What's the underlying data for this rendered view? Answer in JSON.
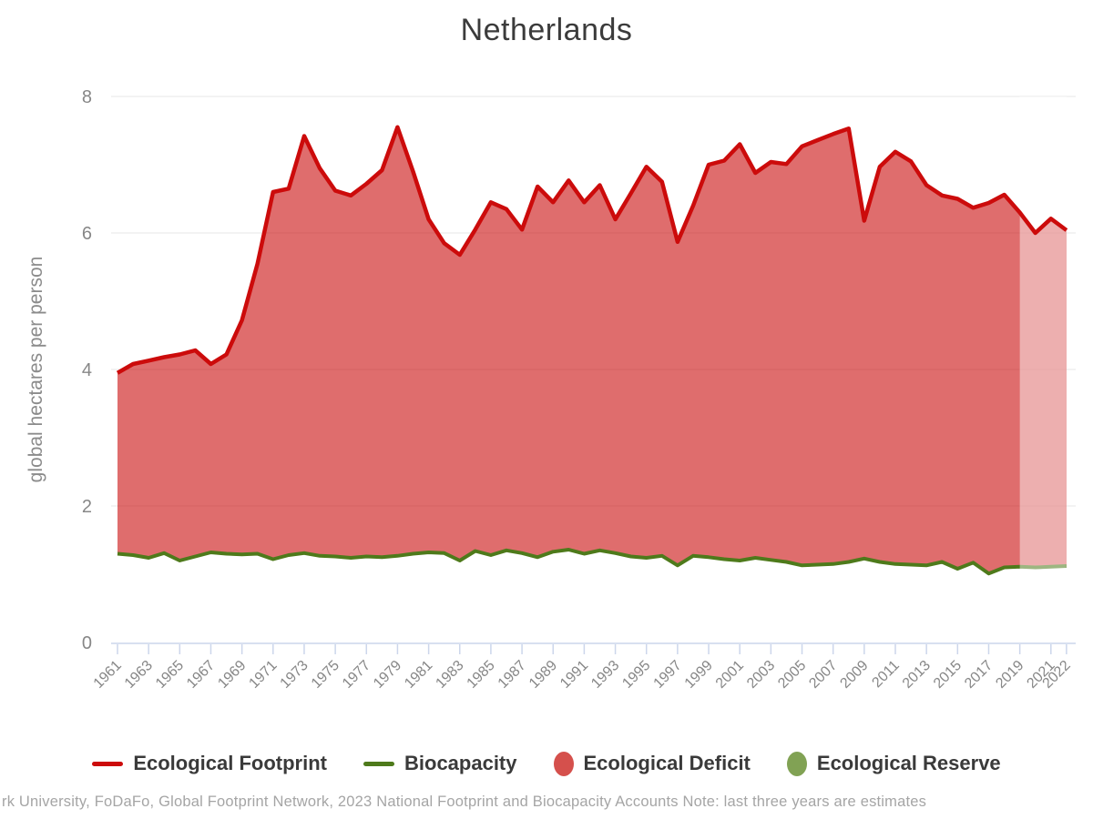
{
  "title": "Netherlands",
  "y_axis": {
    "title": "global hectares per person",
    "ticks": [
      0,
      2,
      4,
      6,
      8
    ],
    "max": 8
  },
  "x_axis": {
    "tick_years": [
      1961,
      1963,
      1965,
      1967,
      1969,
      1971,
      1973,
      1975,
      1977,
      1979,
      1981,
      1983,
      1985,
      1987,
      1989,
      1991,
      1993,
      1995,
      1997,
      1999,
      2001,
      2003,
      2005,
      2007,
      2009,
      2011,
      2013,
      2015,
      2017,
      2019,
      2021,
      2022
    ]
  },
  "legend": [
    {
      "label": "Ecological Footprint",
      "marker": "dash",
      "color": "#cc0b0b"
    },
    {
      "label": "Biocapacity",
      "marker": "dash",
      "color": "#4e7a1b"
    },
    {
      "label": "Ecological Deficit",
      "marker": "ellipse",
      "color": "#d5504c"
    },
    {
      "label": "Ecological Reserve",
      "marker": "ellipse",
      "color": "#81a254"
    }
  ],
  "footer": "rk University, FoDaFo, Global Footprint Network, 2023 National Footprint and Biocapacity Accounts Note: last three years are estimates",
  "colors": {
    "footprint_line": "#cc0b0b",
    "biocapacity_line": "#4e7a1b",
    "deficit_fill": "#cc1414",
    "grid": "#e7e7e7",
    "axis": "#ccd6eb",
    "axis_label": "#878787",
    "estimate_overlay": "#ffffff"
  },
  "chart_data": {
    "type": "area",
    "title": "Netherlands",
    "xlabel": "",
    "ylabel": "global hectares per person",
    "ylim": [
      0,
      8
    ],
    "grid": "horizontal",
    "legend_position": "bottom",
    "x": [
      1961,
      1962,
      1963,
      1964,
      1965,
      1966,
      1967,
      1968,
      1969,
      1970,
      1971,
      1972,
      1973,
      1974,
      1975,
      1976,
      1977,
      1978,
      1979,
      1980,
      1981,
      1982,
      1983,
      1984,
      1985,
      1986,
      1987,
      1988,
      1989,
      1990,
      1991,
      1992,
      1993,
      1994,
      1995,
      1996,
      1997,
      1998,
      1999,
      2000,
      2001,
      2002,
      2003,
      2004,
      2005,
      2006,
      2007,
      2008,
      2009,
      2010,
      2011,
      2012,
      2013,
      2014,
      2015,
      2016,
      2017,
      2018,
      2019,
      2020,
      2021,
      2022
    ],
    "series": [
      {
        "name": "Ecological Footprint",
        "color": "#cc0b0b",
        "values": [
          3.95,
          4.08,
          4.13,
          4.18,
          4.22,
          4.28,
          4.08,
          4.22,
          4.72,
          5.55,
          6.6,
          6.65,
          7.42,
          6.95,
          6.62,
          6.55,
          6.72,
          6.92,
          7.55,
          6.9,
          6.2,
          5.85,
          5.68,
          6.05,
          6.45,
          6.35,
          6.05,
          6.68,
          6.45,
          6.77,
          6.45,
          6.7,
          6.2,
          6.58,
          6.97,
          6.75,
          5.87,
          6.4,
          7.0,
          7.06,
          7.3,
          6.88,
          7.04,
          7.01,
          7.27,
          7.36,
          7.45,
          7.53,
          6.18,
          6.97,
          7.19,
          7.05,
          6.7,
          6.55,
          6.5,
          6.37,
          6.44,
          6.56,
          6.3,
          6.0,
          6.21,
          6.04
        ]
      },
      {
        "name": "Biocapacity",
        "color": "#4e7a1b",
        "values": [
          1.3,
          1.28,
          1.24,
          1.31,
          1.2,
          1.26,
          1.32,
          1.3,
          1.29,
          1.3,
          1.22,
          1.28,
          1.31,
          1.27,
          1.26,
          1.24,
          1.26,
          1.25,
          1.27,
          1.3,
          1.32,
          1.31,
          1.2,
          1.34,
          1.28,
          1.35,
          1.31,
          1.25,
          1.33,
          1.36,
          1.3,
          1.35,
          1.31,
          1.26,
          1.24,
          1.27,
          1.13,
          1.27,
          1.25,
          1.22,
          1.2,
          1.24,
          1.21,
          1.18,
          1.13,
          1.14,
          1.15,
          1.18,
          1.23,
          1.18,
          1.15,
          1.14,
          1.13,
          1.18,
          1.08,
          1.17,
          1.01,
          1.1,
          1.11,
          1.1,
          1.11,
          1.12
        ]
      }
    ],
    "annotations": {
      "deficit_area": "shaded area between Ecological Footprint and Biocapacity lines",
      "estimate_band_from_year": 2019,
      "estimate_band_note": "last three years are estimates (shown lighter)"
    }
  }
}
